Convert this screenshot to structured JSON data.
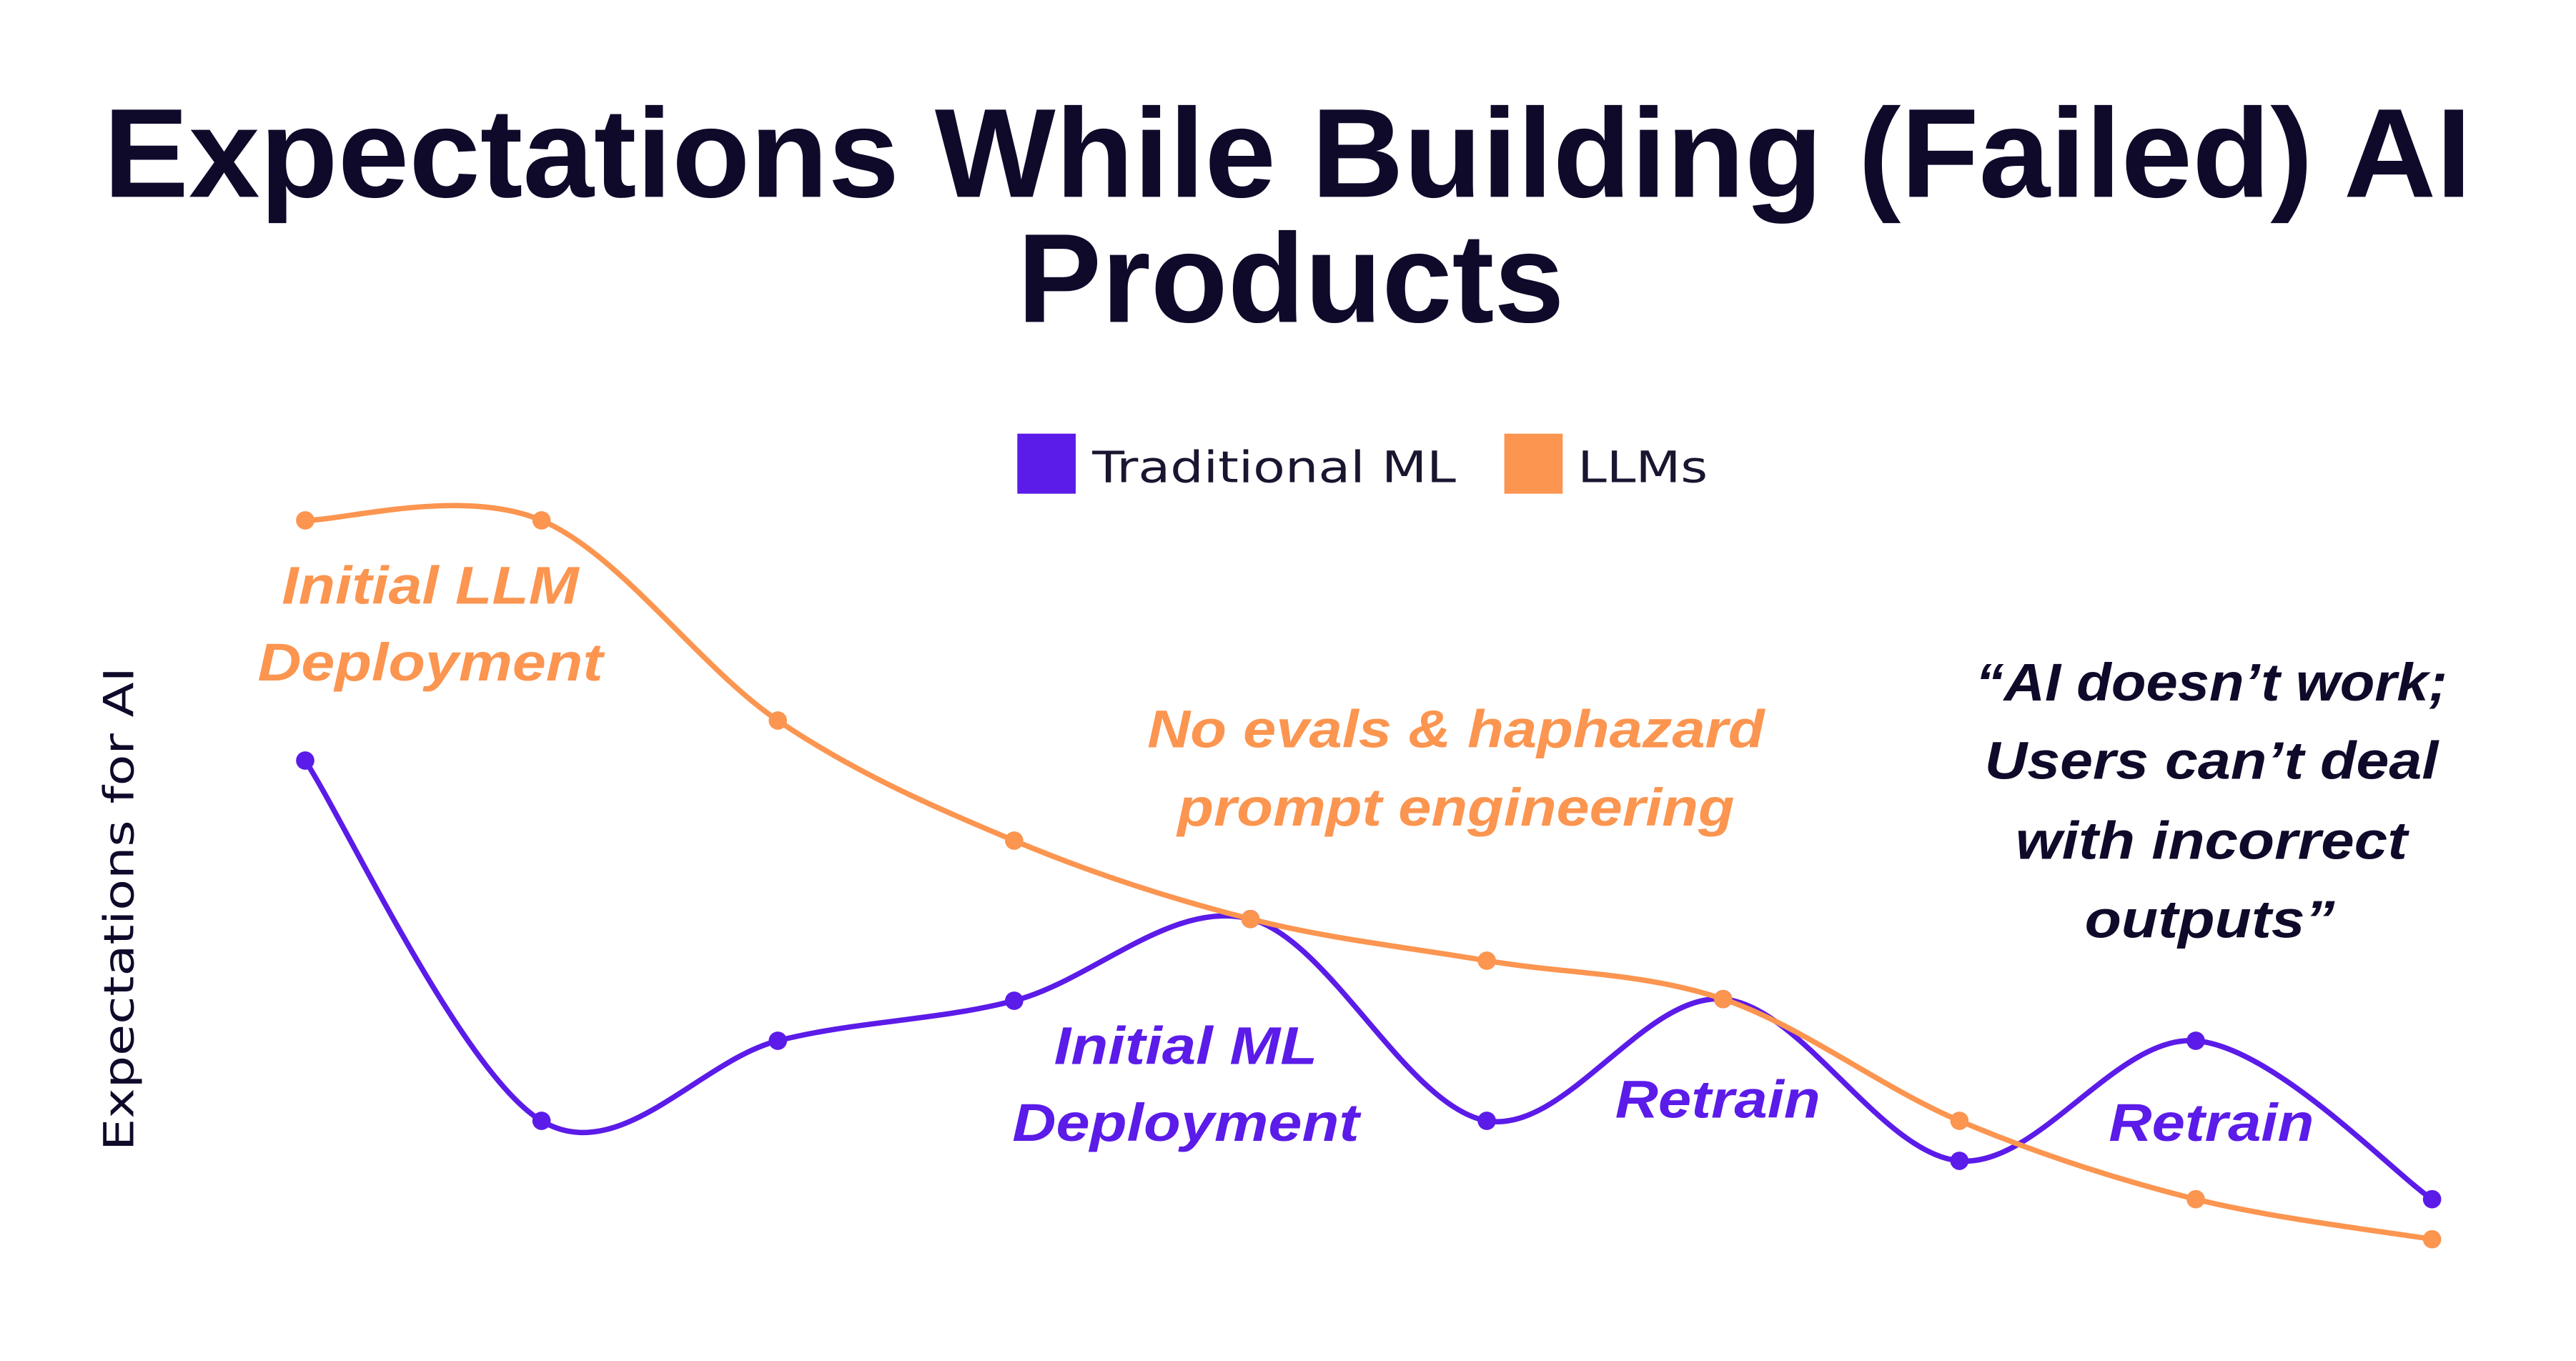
{
  "chart_data": {
    "type": "line",
    "title": [
      "Expectations While Building (Failed) AI",
      "Products"
    ],
    "xlabel": "",
    "ylabel": "Expectations for AI",
    "x": [
      1,
      2,
      3,
      4,
      5,
      6,
      7,
      8,
      9,
      10
    ],
    "ylim": [
      0,
      100
    ],
    "grid": false,
    "legend_position": "top-center",
    "series": [
      {
        "name": "Traditional ML",
        "color": "#5b1be8",
        "values": [
          68.8,
          25.6,
          35.2,
          40.0,
          49.8,
          25.6,
          40.2,
          20.8,
          35.2,
          16.2
        ]
      },
      {
        "name": "LLMs",
        "color": "#fb9550",
        "values": [
          97.6,
          97.6,
          73.6,
          59.2,
          49.8,
          44.8,
          40.2,
          25.6,
          16.2,
          11.4
        ]
      }
    ],
    "annotations": {
      "llm_deploy": [
        "Initial LLM",
        "Deployment"
      ],
      "no_evals": [
        "No evals & haphazard",
        "prompt engineering"
      ],
      "quote": [
        "“AI doesn’t work;",
        "Users can’t deal",
        "with incorrect",
        "outputs”"
      ],
      "ml_deploy": [
        "Initial ML",
        "Deployment"
      ],
      "retrain_1": "Retrain",
      "retrain_2": "Retrain"
    },
    "colors": {
      "title": "#0f0a2a",
      "quote": "#0f0a2a"
    }
  }
}
